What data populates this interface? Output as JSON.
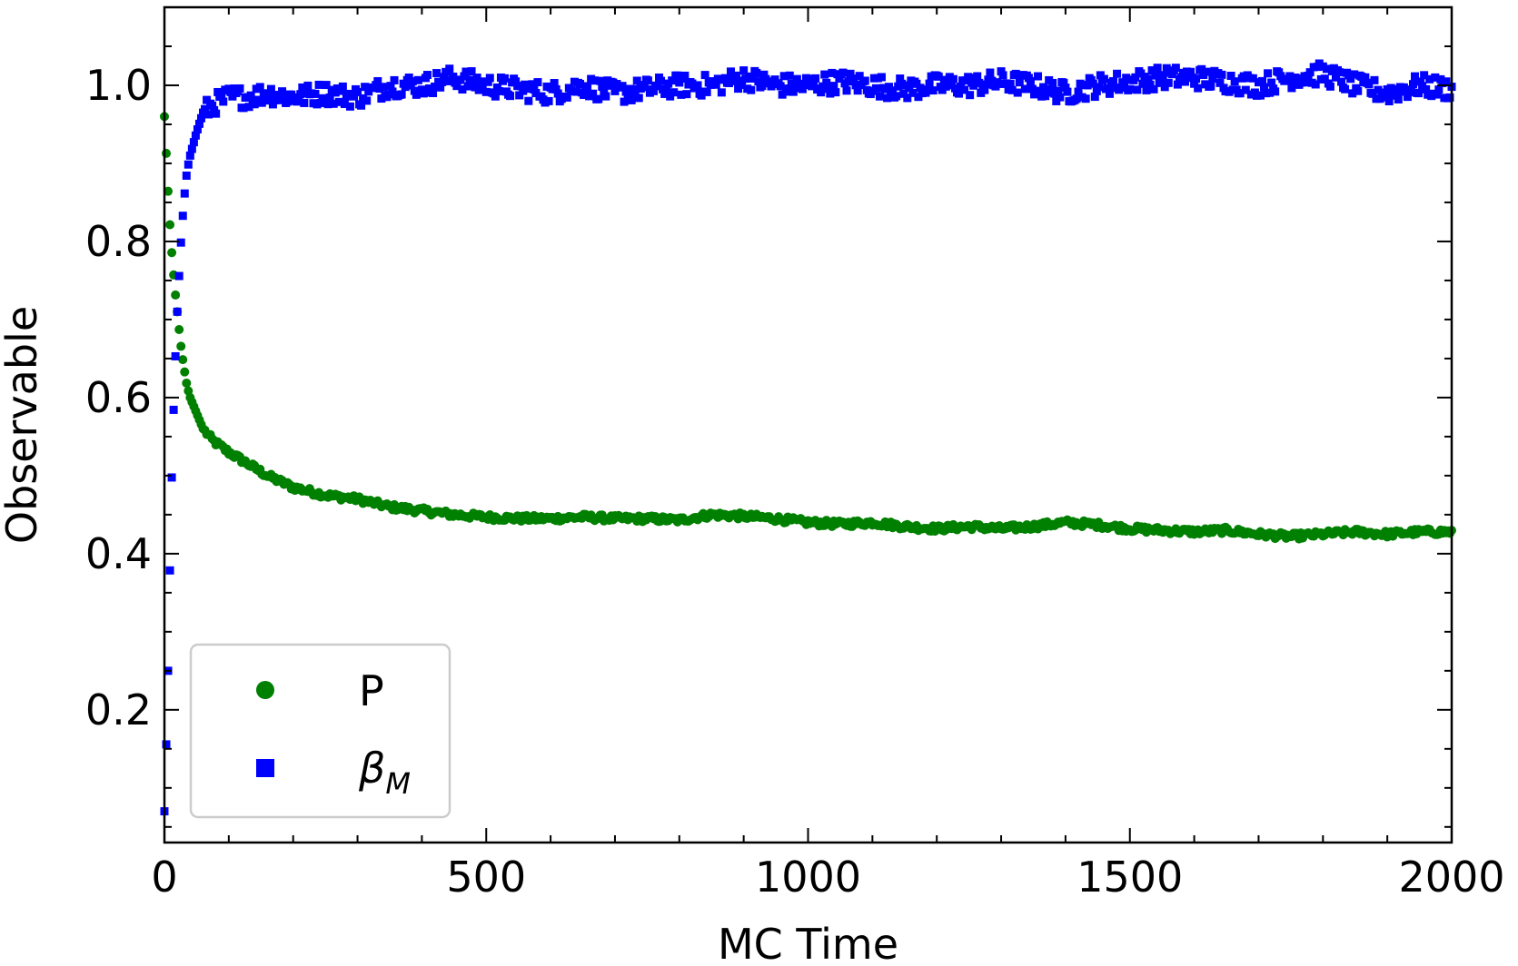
{
  "chart_data": {
    "type": "scatter",
    "title": "",
    "xlabel": "MC Time",
    "ylabel": "Observable",
    "xlim": [
      0,
      2000
    ],
    "ylim": [
      0.03,
      1.1
    ],
    "xticks": [
      0,
      500,
      1000,
      1500,
      2000
    ],
    "xtick_labels": [
      "0",
      "500",
      "1000",
      "1500",
      "2000"
    ],
    "yticks": [
      0.2,
      0.4,
      0.6,
      0.8,
      1.0
    ],
    "ytick_labels": [
      "0.2",
      "0.4",
      "0.6",
      "0.8",
      "1.0"
    ],
    "grid": false,
    "legend_position": "lower-left",
    "series": [
      {
        "name": "P",
        "marker": "circle",
        "color": "#008000",
        "x": [
          0,
          2,
          4,
          6,
          8,
          10,
          13,
          16,
          20,
          25,
          30,
          35,
          40,
          50,
          60,
          75,
          100,
          130,
          160,
          200,
          250,
          300,
          350,
          400,
          450,
          500,
          550,
          600,
          650,
          700,
          750,
          800,
          850,
          900,
          950,
          1000,
          1050,
          1100,
          1150,
          1200,
          1250,
          1300,
          1350,
          1400,
          1450,
          1500,
          1550,
          1600,
          1650,
          1700,
          1750,
          1800,
          1850,
          1900,
          1950,
          2000
        ],
        "y": [
          0.96,
          0.93,
          0.89,
          0.86,
          0.83,
          0.8,
          0.77,
          0.74,
          0.71,
          0.67,
          0.64,
          0.615,
          0.6,
          0.58,
          0.56,
          0.545,
          0.53,
          0.515,
          0.5,
          0.485,
          0.475,
          0.47,
          0.46,
          0.455,
          0.45,
          0.447,
          0.445,
          0.445,
          0.447,
          0.445,
          0.445,
          0.443,
          0.45,
          0.448,
          0.445,
          0.44,
          0.438,
          0.44,
          0.435,
          0.432,
          0.435,
          0.432,
          0.435,
          0.44,
          0.437,
          0.432,
          0.43,
          0.428,
          0.43,
          0.425,
          0.422,
          0.425,
          0.428,
          0.425,
          0.428,
          0.428
        ]
      },
      {
        "name": "β_M",
        "marker": "square",
        "color": "#0000ff",
        "x": [
          0,
          2,
          4,
          6,
          8,
          10,
          13,
          16,
          20,
          25,
          30,
          35,
          40,
          50,
          60,
          75,
          100,
          130,
          160,
          200,
          250,
          300,
          350,
          400,
          450,
          500,
          550,
          600,
          650,
          700,
          750,
          800,
          850,
          900,
          950,
          1000,
          1050,
          1100,
          1150,
          1200,
          1250,
          1300,
          1350,
          1400,
          1450,
          1500,
          1550,
          1600,
          1650,
          1700,
          1750,
          1800,
          1850,
          1900,
          1950,
          2000
        ],
        "y": [
          0.07,
          0.13,
          0.19,
          0.26,
          0.35,
          0.45,
          0.55,
          0.63,
          0.71,
          0.79,
          0.85,
          0.89,
          0.91,
          0.94,
          0.965,
          0.975,
          0.985,
          0.985,
          0.99,
          0.985,
          0.99,
          0.985,
          1.0,
          1.0,
          1.01,
          1.0,
          0.995,
          0.99,
          1.0,
          0.99,
          0.995,
          1.0,
          1.0,
          1.01,
          1.0,
          1.0,
          1.005,
          1.0,
          0.995,
          1.0,
          1.0,
          1.005,
          1.0,
          0.99,
          1.0,
          1.005,
          1.01,
          1.01,
          1.005,
          1.0,
          1.01,
          1.015,
          1.0,
          0.99,
          1.0,
          0.995
        ]
      }
    ]
  }
}
